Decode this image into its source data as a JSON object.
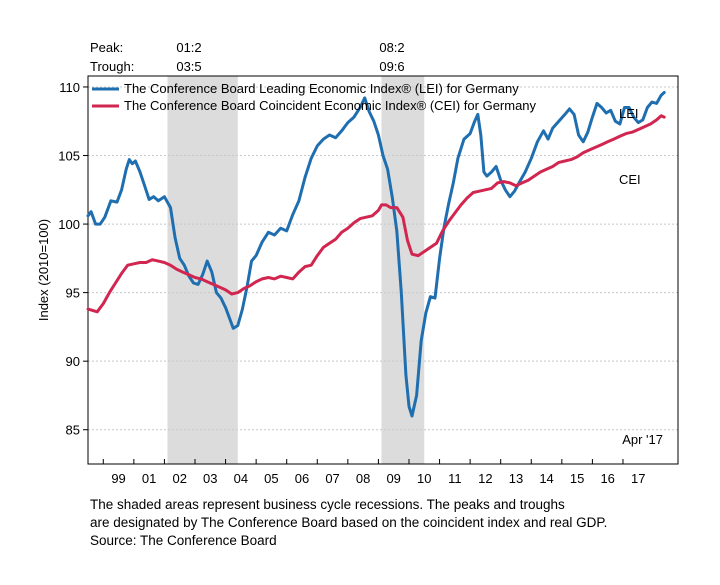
{
  "header": {
    "peak_label": "Peak:",
    "trough_label": "Trough:",
    "recessions": [
      {
        "peak": "01:2",
        "trough": "03:5"
      },
      {
        "peak": "08:2",
        "trough": "09:6"
      }
    ]
  },
  "footnote": {
    "line1": "The shaded areas represent business cycle recessions. The peaks and troughs",
    "line2": "are designated by The Conference Board based on the coincident index and real GDP.",
    "line3": "Source: The Conference Board"
  },
  "chart_data": {
    "type": "line",
    "ylabel": "Index (2010=100)",
    "ylim": [
      82.5,
      110.8
    ],
    "xlim": [
      1998.5,
      2017.8
    ],
    "yticks": [
      85,
      90,
      95,
      100,
      105,
      110
    ],
    "xticks": [
      "99",
      "01",
      "02",
      "03",
      "04",
      "05",
      "06",
      "07",
      "08",
      "09",
      "10",
      "11",
      "12",
      "13",
      "14",
      "15",
      "16",
      "17"
    ],
    "grid": true,
    "legend_position": "top-left",
    "date_annotation": "Apr '17",
    "recession_shading": [
      [
        2001.1,
        2003.4
      ],
      [
        2008.1,
        2009.5
      ]
    ],
    "series": [
      {
        "name": "The Conference Board Leading Economic Index® (LEI) for Germany",
        "label": "LEI",
        "color": "#1f6fb0",
        "points": [
          [
            1998.5,
            100.6
          ],
          [
            1998.6,
            100.9
          ],
          [
            1998.75,
            100.0
          ],
          [
            1998.9,
            100.0
          ],
          [
            1999.05,
            100.5
          ],
          [
            1999.25,
            101.7
          ],
          [
            1999.45,
            101.6
          ],
          [
            1999.6,
            102.5
          ],
          [
            1999.75,
            104.0
          ],
          [
            1999.85,
            104.7
          ],
          [
            1999.95,
            104.4
          ],
          [
            2000.05,
            104.6
          ],
          [
            2000.2,
            103.8
          ],
          [
            2000.35,
            102.8
          ],
          [
            2000.5,
            101.8
          ],
          [
            2000.65,
            102.0
          ],
          [
            2000.8,
            101.7
          ],
          [
            2001.0,
            102.0
          ],
          [
            2001.2,
            101.2
          ],
          [
            2001.35,
            99.0
          ],
          [
            2001.5,
            97.5
          ],
          [
            2001.65,
            97.0
          ],
          [
            2001.8,
            96.2
          ],
          [
            2001.95,
            95.7
          ],
          [
            2002.1,
            95.6
          ],
          [
            2002.25,
            96.3
          ],
          [
            2002.4,
            97.3
          ],
          [
            2002.55,
            96.5
          ],
          [
            2002.7,
            95.0
          ],
          [
            2002.85,
            94.6
          ],
          [
            2003.0,
            93.9
          ],
          [
            2003.15,
            93.0
          ],
          [
            2003.25,
            92.4
          ],
          [
            2003.4,
            92.6
          ],
          [
            2003.55,
            93.8
          ],
          [
            2003.7,
            95.4
          ],
          [
            2003.85,
            97.3
          ],
          [
            2004.0,
            97.7
          ],
          [
            2004.2,
            98.7
          ],
          [
            2004.4,
            99.4
          ],
          [
            2004.6,
            99.2
          ],
          [
            2004.8,
            99.7
          ],
          [
            2005.0,
            99.5
          ],
          [
            2005.2,
            100.7
          ],
          [
            2005.4,
            101.7
          ],
          [
            2005.6,
            103.4
          ],
          [
            2005.8,
            104.8
          ],
          [
            2006.0,
            105.7
          ],
          [
            2006.2,
            106.2
          ],
          [
            2006.4,
            106.5
          ],
          [
            2006.6,
            106.3
          ],
          [
            2006.8,
            106.8
          ],
          [
            2007.0,
            107.4
          ],
          [
            2007.2,
            107.8
          ],
          [
            2007.4,
            108.5
          ],
          [
            2007.55,
            109.2
          ],
          [
            2007.7,
            108.2
          ],
          [
            2007.85,
            107.5
          ],
          [
            2008.0,
            106.5
          ],
          [
            2008.15,
            105.0
          ],
          [
            2008.3,
            104.0
          ],
          [
            2008.45,
            102.0
          ],
          [
            2008.6,
            99.5
          ],
          [
            2008.75,
            95.0
          ],
          [
            2008.9,
            89.0
          ],
          [
            2009.0,
            86.7
          ],
          [
            2009.1,
            86.0
          ],
          [
            2009.25,
            87.5
          ],
          [
            2009.4,
            91.5
          ],
          [
            2009.55,
            93.5
          ],
          [
            2009.7,
            94.7
          ],
          [
            2009.85,
            94.6
          ],
          [
            2010.0,
            97.5
          ],
          [
            2010.15,
            99.8
          ],
          [
            2010.3,
            101.5
          ],
          [
            2010.45,
            103.0
          ],
          [
            2010.6,
            104.8
          ],
          [
            2010.8,
            106.2
          ],
          [
            2011.0,
            106.6
          ],
          [
            2011.15,
            107.5
          ],
          [
            2011.25,
            108.0
          ],
          [
            2011.35,
            106.5
          ],
          [
            2011.45,
            103.8
          ],
          [
            2011.55,
            103.5
          ],
          [
            2011.7,
            103.8
          ],
          [
            2011.85,
            104.2
          ],
          [
            2012.0,
            103.2
          ],
          [
            2012.15,
            102.5
          ],
          [
            2012.3,
            102.0
          ],
          [
            2012.45,
            102.4
          ],
          [
            2012.6,
            103.0
          ],
          [
            2012.8,
            103.8
          ],
          [
            2013.0,
            104.8
          ],
          [
            2013.2,
            106.0
          ],
          [
            2013.4,
            106.8
          ],
          [
            2013.55,
            106.2
          ],
          [
            2013.7,
            107.0
          ],
          [
            2013.9,
            107.5
          ],
          [
            2014.1,
            108.0
          ],
          [
            2014.25,
            108.4
          ],
          [
            2014.4,
            108.0
          ],
          [
            2014.55,
            106.5
          ],
          [
            2014.7,
            106.0
          ],
          [
            2014.85,
            106.7
          ],
          [
            2015.0,
            107.8
          ],
          [
            2015.15,
            108.8
          ],
          [
            2015.3,
            108.5
          ],
          [
            2015.45,
            108.1
          ],
          [
            2015.6,
            108.3
          ],
          [
            2015.75,
            107.5
          ],
          [
            2015.9,
            107.3
          ],
          [
            2016.05,
            108.5
          ],
          [
            2016.2,
            108.5
          ],
          [
            2016.35,
            107.8
          ],
          [
            2016.5,
            107.4
          ],
          [
            2016.65,
            107.6
          ],
          [
            2016.8,
            108.5
          ],
          [
            2016.95,
            108.9
          ],
          [
            2017.1,
            108.8
          ],
          [
            2017.25,
            109.4
          ],
          [
            2017.35,
            109.6
          ]
        ]
      },
      {
        "name": "The Conference Board Coincident Economic Index® (CEI) for Germany",
        "label": "CEI",
        "color": "#d1264f",
        "points": [
          [
            1998.5,
            93.8
          ],
          [
            1998.65,
            93.7
          ],
          [
            1998.8,
            93.6
          ],
          [
            1999.0,
            94.2
          ],
          [
            1999.2,
            95.0
          ],
          [
            1999.4,
            95.7
          ],
          [
            1999.6,
            96.4
          ],
          [
            1999.8,
            97.0
          ],
          [
            2000.0,
            97.1
          ],
          [
            2000.2,
            97.2
          ],
          [
            2000.4,
            97.2
          ],
          [
            2000.6,
            97.4
          ],
          [
            2000.8,
            97.3
          ],
          [
            2001.0,
            97.2
          ],
          [
            2001.2,
            97.0
          ],
          [
            2001.4,
            96.7
          ],
          [
            2001.6,
            96.5
          ],
          [
            2001.8,
            96.3
          ],
          [
            2002.0,
            96.1
          ],
          [
            2002.2,
            96.0
          ],
          [
            2002.4,
            95.8
          ],
          [
            2002.6,
            95.6
          ],
          [
            2002.8,
            95.4
          ],
          [
            2003.0,
            95.2
          ],
          [
            2003.2,
            94.9
          ],
          [
            2003.4,
            95.0
          ],
          [
            2003.6,
            95.3
          ],
          [
            2003.8,
            95.5
          ],
          [
            2004.0,
            95.8
          ],
          [
            2004.2,
            96.0
          ],
          [
            2004.4,
            96.1
          ],
          [
            2004.6,
            96.0
          ],
          [
            2004.8,
            96.2
          ],
          [
            2005.0,
            96.1
          ],
          [
            2005.2,
            96.0
          ],
          [
            2005.4,
            96.5
          ],
          [
            2005.6,
            96.9
          ],
          [
            2005.8,
            97.0
          ],
          [
            2006.0,
            97.7
          ],
          [
            2006.2,
            98.3
          ],
          [
            2006.4,
            98.6
          ],
          [
            2006.6,
            98.9
          ],
          [
            2006.8,
            99.4
          ],
          [
            2007.0,
            99.7
          ],
          [
            2007.2,
            100.1
          ],
          [
            2007.4,
            100.4
          ],
          [
            2007.6,
            100.5
          ],
          [
            2007.8,
            100.6
          ],
          [
            2008.0,
            101.0
          ],
          [
            2008.1,
            101.4
          ],
          [
            2008.25,
            101.4
          ],
          [
            2008.4,
            101.2
          ],
          [
            2008.6,
            101.2
          ],
          [
            2008.8,
            100.5
          ],
          [
            2008.95,
            98.8
          ],
          [
            2009.1,
            97.8
          ],
          [
            2009.3,
            97.7
          ],
          [
            2009.5,
            98.0
          ],
          [
            2009.7,
            98.3
          ],
          [
            2009.9,
            98.6
          ],
          [
            2010.1,
            99.5
          ],
          [
            2010.3,
            100.2
          ],
          [
            2010.5,
            100.8
          ],
          [
            2010.7,
            101.4
          ],
          [
            2010.9,
            101.9
          ],
          [
            2011.1,
            102.3
          ],
          [
            2011.3,
            102.4
          ],
          [
            2011.5,
            102.5
          ],
          [
            2011.7,
            102.6
          ],
          [
            2011.9,
            103.0
          ],
          [
            2012.1,
            103.1
          ],
          [
            2012.3,
            103.0
          ],
          [
            2012.5,
            102.8
          ],
          [
            2012.7,
            103.0
          ],
          [
            2012.9,
            103.2
          ],
          [
            2013.1,
            103.5
          ],
          [
            2013.3,
            103.8
          ],
          [
            2013.5,
            104.0
          ],
          [
            2013.7,
            104.2
          ],
          [
            2013.9,
            104.5
          ],
          [
            2014.1,
            104.6
          ],
          [
            2014.3,
            104.7
          ],
          [
            2014.5,
            104.9
          ],
          [
            2014.7,
            105.2
          ],
          [
            2014.9,
            105.4
          ],
          [
            2015.1,
            105.6
          ],
          [
            2015.3,
            105.8
          ],
          [
            2015.5,
            106.0
          ],
          [
            2015.7,
            106.2
          ],
          [
            2015.9,
            106.4
          ],
          [
            2016.1,
            106.6
          ],
          [
            2016.3,
            106.7
          ],
          [
            2016.5,
            106.9
          ],
          [
            2016.7,
            107.1
          ],
          [
            2016.9,
            107.3
          ],
          [
            2017.1,
            107.6
          ],
          [
            2017.25,
            107.9
          ],
          [
            2017.35,
            107.8
          ]
        ]
      }
    ]
  }
}
